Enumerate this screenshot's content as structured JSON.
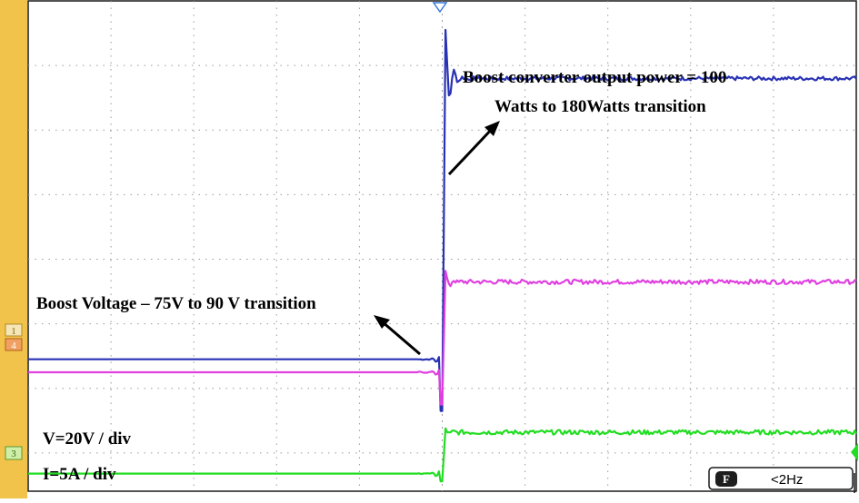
{
  "colors": {
    "side_panel": "#f2c34a",
    "channel_1": "#2832b4",
    "channel_4": "#e040e0",
    "channel_3": "#22dd22",
    "grid": "#9a9a9a",
    "badge_bg": "#1e1e1e"
  },
  "channel_markers": {
    "ch1": "1",
    "ch4": "4",
    "ch3": "3"
  },
  "annotations": {
    "power_line1": "Boost converter output power = 100",
    "power_line2": "Watts to 180Watts transition",
    "voltage": "Boost Voltage – 75V to 90 V transition",
    "v_scale": "V=20V / div",
    "i_scale": "I=5A / div"
  },
  "status_box": {
    "badge": "F",
    "freq": "<2Hz"
  },
  "chart_data": {
    "type": "line",
    "title": "",
    "xlabel": "",
    "ylabel": "",
    "grid": true,
    "grid_divisions": {
      "x": 10,
      "y": 8
    },
    "xlim": [
      0,
      10
    ],
    "ylim": [
      0,
      8
    ],
    "trigger_x": 5.0,
    "series": [
      {
        "channel": "1",
        "color": "#2832b4",
        "before": 2.45,
        "after": 6.8,
        "overshoot_peak": 7.55,
        "undershoot": 1.65,
        "ripple": 0.03
      },
      {
        "channel": "4",
        "color": "#e040e0",
        "before": 2.25,
        "after": 3.65,
        "overshoot_peak": 3.82,
        "undershoot": 1.75,
        "ripple": 0.035
      },
      {
        "channel": "3",
        "color": "#22dd22",
        "before": 0.68,
        "after": 1.32,
        "overshoot_peak": 1.38,
        "undershoot": 0.56,
        "ripple": 0.035
      }
    ]
  }
}
